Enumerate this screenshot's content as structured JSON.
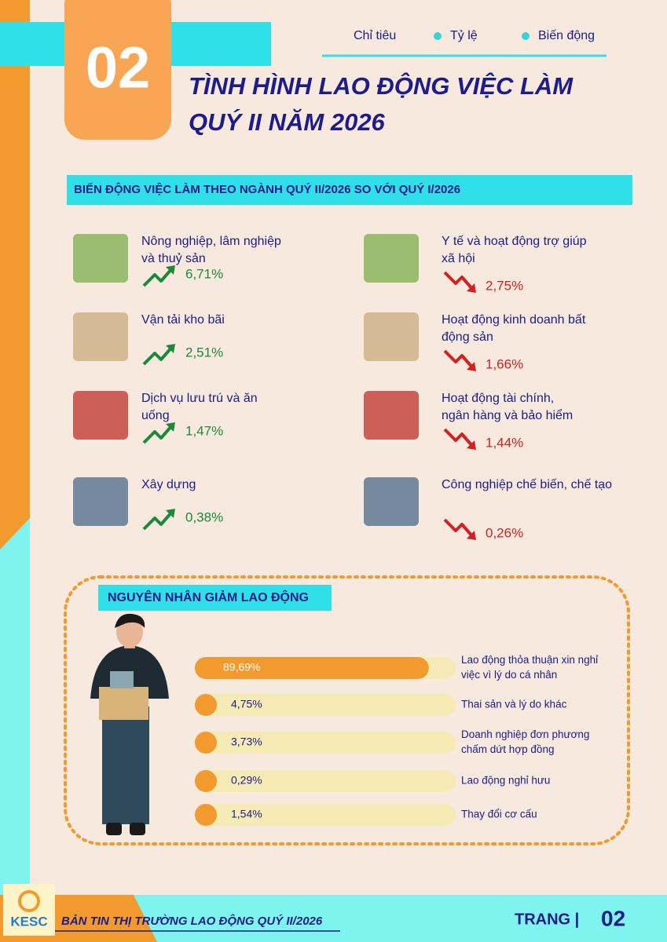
{
  "header": {
    "number": "02",
    "title_lines": [
      "TÌNH HÌNH LAO ĐỘNG VIỆC LÀM",
      "QUÝ II NĂM 2026"
    ]
  },
  "legend": [
    "Chỉ tiêu",
    "Tỷ lệ",
    "Biến động"
  ],
  "section1": {
    "title": "BIẾN ĐỘNG VIỆC LÀM THEO NGÀNH QUÝ II/2026 SO VỚI QUÝ I/2026",
    "left": [
      {
        "label_lines": [
          "Nông nghiệp, lâm nghiệp",
          "và thuỷ sản"
        ],
        "value": "6,71%",
        "trend": "up"
      },
      {
        "label_lines": [
          "Vận tải kho bãi"
        ],
        "value": "2,51%",
        "trend": "up"
      },
      {
        "label_lines": [
          "Dịch vụ lưu trú và ăn",
          "uống"
        ],
        "value": "1,47%",
        "trend": "up"
      },
      {
        "label_lines": [
          "Xây dựng"
        ],
        "value": "0,38%",
        "trend": "up"
      }
    ],
    "right": [
      {
        "label_lines": [
          "Y tế và hoạt động trợ giúp",
          "xã hội"
        ],
        "value": "2,75%",
        "trend": "down"
      },
      {
        "label_lines": [
          "Hoạt động kinh doanh bất",
          "động sản"
        ],
        "value": "1,66%",
        "trend": "down"
      },
      {
        "label_lines": [
          "Hoạt động tài chính,",
          "ngân hàng và bảo hiểm"
        ],
        "value": "1,44%",
        "trend": "down"
      },
      {
        "label_lines": [
          "Công nghiệp chế biến, chế tạo"
        ],
        "value": "0,26%",
        "trend": "down"
      }
    ]
  },
  "section2": {
    "title": "NGUYÊN NHÂN GIẢM LAO ĐỘNG",
    "reasons": [
      {
        "value": 89.69,
        "label": "89,69%",
        "text_lines": [
          "Lao động thỏa thuận xin nghỉ",
          "việc vì lý do cá nhân"
        ]
      },
      {
        "value": 4.75,
        "label": "4,75%",
        "text_lines": [
          "Thai sản và lý do khác"
        ]
      },
      {
        "value": 3.73,
        "label": "3,73%",
        "text_lines": [
          "Doanh nghiệp đơn phương",
          "chấm dứt hợp đồng"
        ]
      },
      {
        "value": 0.29,
        "label": "0,29%",
        "text_lines": [
          "Lao động nghỉ hưu"
        ]
      },
      {
        "value": 1.54,
        "label": "1,54%",
        "text_lines": [
          "Thay đổi cơ cấu"
        ]
      }
    ]
  },
  "footer": {
    "logo": "KESC",
    "title": "BẢN TIN THỊ TRƯỜNG LAO ĐỘNG QUÝ II/2026",
    "page_label": "TRANG |",
    "page": "02"
  }
}
